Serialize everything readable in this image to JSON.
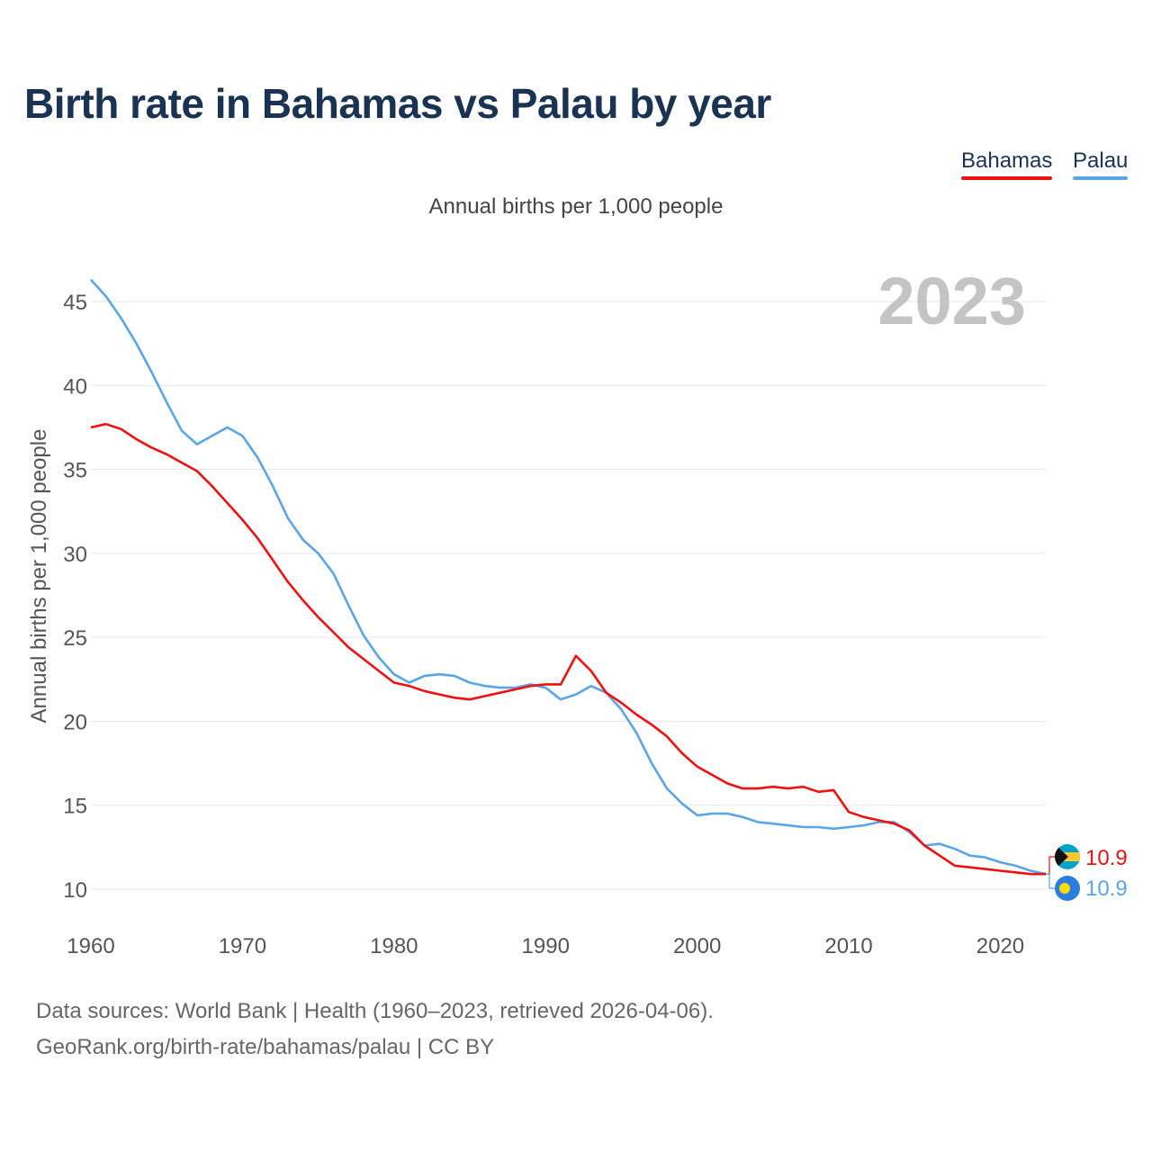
{
  "title": "Birth rate in Bahamas vs Palau by year",
  "subtitle": "Annual births per 1,000 people",
  "legend": [
    {
      "name": "Bahamas",
      "color": "#ee1111"
    },
    {
      "name": "Palau",
      "color": "#5aa5e6"
    }
  ],
  "year_watermark": "2023",
  "footer": {
    "line1": "Data sources: World Bank | Health (1960–2023, retrieved 2026-04-06).",
    "line2": "GeoRank.org/birth-rate/bahamas/palau | CC BY"
  },
  "end_labels": {
    "bahamas": {
      "value": "10.9",
      "flag_icon": "bahamas-flag-icon"
    },
    "palau": {
      "value": "10.9",
      "flag_icon": "palau-flag-icon"
    }
  },
  "chart_data": {
    "type": "line",
    "title": "Birth rate in Bahamas vs Palau by year",
    "ylabel": "Annual births per 1,000 people",
    "xlabel": "",
    "xlim": [
      1960,
      2023
    ],
    "ylim": [
      8,
      47
    ],
    "x_ticks": [
      1960,
      1970,
      1980,
      1990,
      2000,
      2010,
      2020
    ],
    "y_ticks": [
      10,
      15,
      20,
      25,
      30,
      35,
      40,
      45
    ],
    "grid": true,
    "legend_position": "top-right",
    "x": [
      1960,
      1961,
      1962,
      1963,
      1964,
      1965,
      1966,
      1967,
      1968,
      1969,
      1970,
      1971,
      1972,
      1973,
      1974,
      1975,
      1976,
      1977,
      1978,
      1979,
      1980,
      1981,
      1982,
      1983,
      1984,
      1985,
      1986,
      1987,
      1988,
      1989,
      1990,
      1991,
      1992,
      1993,
      1994,
      1995,
      1996,
      1997,
      1998,
      1999,
      2000,
      2001,
      2002,
      2003,
      2004,
      2005,
      2006,
      2007,
      2008,
      2009,
      2010,
      2011,
      2012,
      2013,
      2014,
      2015,
      2016,
      2017,
      2018,
      2019,
      2020,
      2021,
      2022,
      2023
    ],
    "series": [
      {
        "name": "Bahamas",
        "color": "#ee1111",
        "values": [
          37.5,
          37.7,
          37.4,
          36.8,
          36.3,
          35.9,
          35.4,
          34.9,
          34.0,
          33.0,
          32.0,
          30.9,
          29.6,
          28.3,
          27.2,
          26.2,
          25.3,
          24.4,
          23.7,
          23.0,
          22.3,
          22.1,
          21.8,
          21.6,
          21.4,
          21.3,
          21.5,
          21.7,
          21.9,
          22.1,
          22.2,
          22.2,
          23.9,
          23.0,
          21.7,
          21.1,
          20.4,
          19.8,
          19.1,
          18.1,
          17.3,
          16.8,
          16.3,
          16.0,
          16.0,
          16.1,
          16.0,
          16.1,
          15.8,
          15.9,
          14.6,
          14.3,
          14.1,
          13.9,
          13.5,
          12.6,
          12.0,
          11.4,
          11.3,
          11.2,
          11.1,
          11.0,
          10.9,
          10.9
        ]
      },
      {
        "name": "Palau",
        "color": "#5aa5e6",
        "values": [
          46.3,
          45.3,
          44.0,
          42.5,
          40.8,
          39.0,
          37.3,
          36.5,
          37.0,
          37.5,
          37.0,
          35.7,
          34.0,
          32.1,
          30.8,
          30.0,
          28.8,
          26.9,
          25.1,
          23.8,
          22.8,
          22.3,
          22.7,
          22.8,
          22.7,
          22.3,
          22.1,
          22.0,
          22.0,
          22.2,
          22.0,
          21.3,
          21.6,
          22.1,
          21.7,
          20.7,
          19.3,
          17.5,
          16.0,
          15.1,
          14.4,
          14.5,
          14.5,
          14.3,
          14.0,
          13.9,
          13.8,
          13.7,
          13.7,
          13.6,
          13.7,
          13.8,
          14.0,
          14.0,
          13.4,
          12.6,
          12.7,
          12.4,
          12.0,
          11.9,
          11.6,
          11.4,
          11.1,
          10.9
        ]
      }
    ]
  }
}
